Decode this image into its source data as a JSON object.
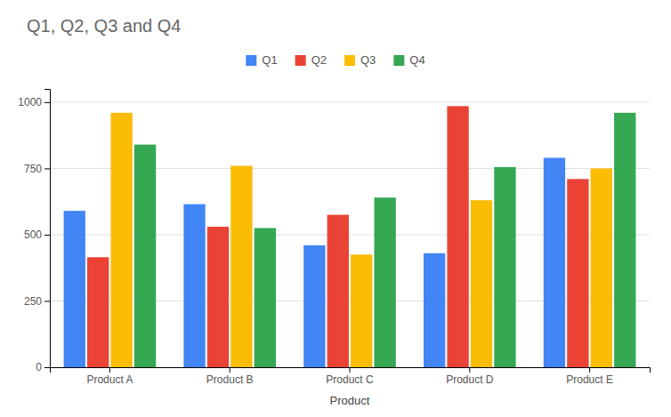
{
  "chart_data": {
    "type": "bar",
    "title": "Q1, Q2, Q3 and Q4",
    "xlabel": "Product",
    "categories": [
      "Product A",
      "Product B",
      "Product C",
      "Product D",
      "Product E"
    ],
    "series": [
      {
        "name": "Q1",
        "color": "#4285F4",
        "values": [
          590,
          615,
          460,
          430,
          790
        ]
      },
      {
        "name": "Q2",
        "color": "#EA4335",
        "values": [
          415,
          530,
          575,
          985,
          710
        ]
      },
      {
        "name": "Q3",
        "color": "#FBBC04",
        "values": [
          960,
          760,
          425,
          630,
          750
        ]
      },
      {
        "name": "Q4",
        "color": "#34A853",
        "values": [
          840,
          525,
          640,
          755,
          960
        ]
      }
    ],
    "ylim": [
      0,
      1050
    ],
    "yticks": [
      0,
      250,
      500,
      750,
      1000
    ],
    "grid": true,
    "legend": "top"
  }
}
